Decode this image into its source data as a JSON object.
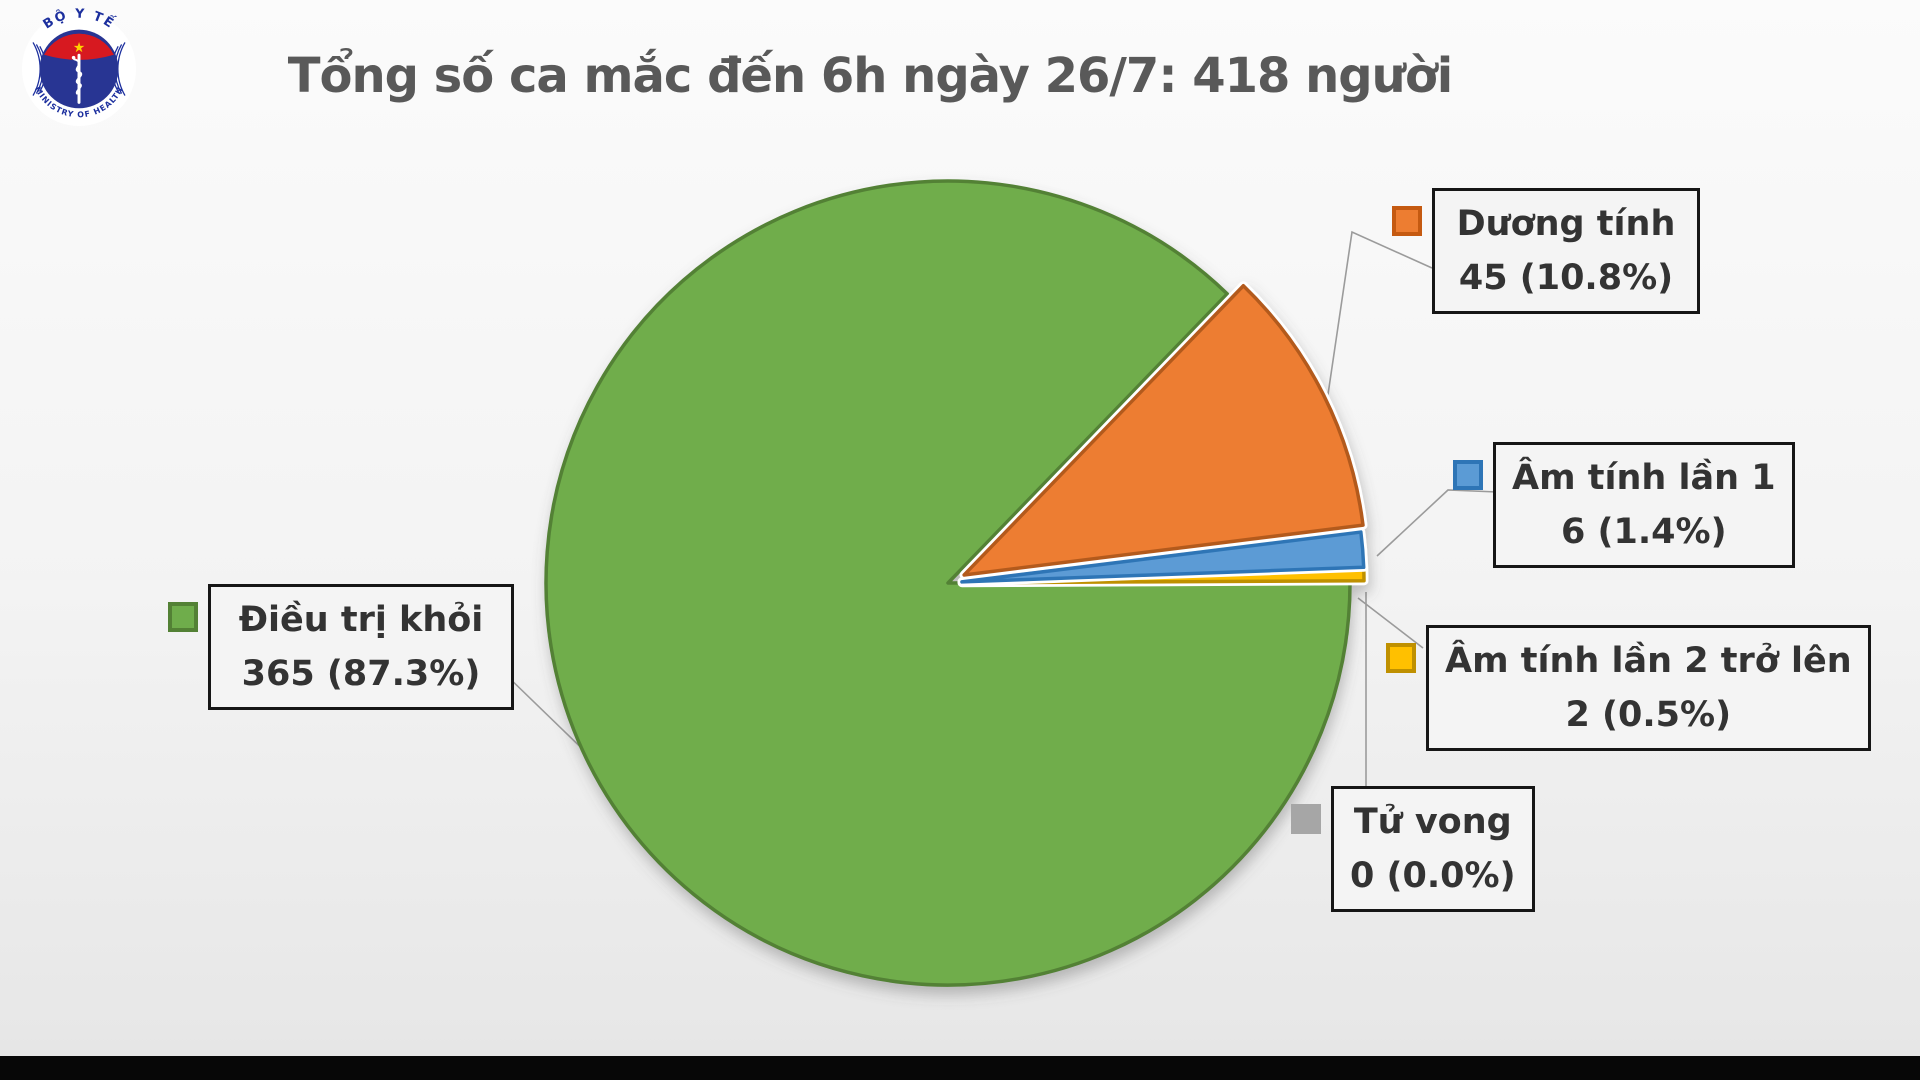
{
  "title": "Tổng số ca mắc đến 6h ngày 26/7: 418 người",
  "logo": {
    "top_text": "BỘ Y TẾ",
    "bottom_text": "MINISTRY OF HEALTH",
    "star": "★"
  },
  "chart_data": {
    "type": "pie",
    "title": "Tổng số ca mắc đến 6h ngày 26/7: 418 người",
    "total": 418,
    "unit": "người",
    "date_label": "6h ngày 26/7",
    "direction": "clockwise",
    "start_angle_deg": 46,
    "legend_position": "callout-labels",
    "slices": [
      {
        "label": "Dương tính",
        "value": 45,
        "percent": 10.8,
        "display": "45 (10.8%)",
        "fill": "#ED7D31",
        "stroke": "#B35A1F",
        "exploded": true
      },
      {
        "label": "Âm tính lần 1",
        "value": 6,
        "percent": 1.4,
        "display": "6 (1.4%)",
        "fill": "#5B9BD5",
        "stroke": "#2E75B6",
        "exploded": true
      },
      {
        "label": "Âm tính lần 2 trở lên",
        "value": 2,
        "percent": 0.5,
        "display": "2 (0.5%)",
        "fill": "#FFC000",
        "stroke": "#BF9000",
        "exploded": true
      },
      {
        "label": "Tử vong",
        "value": 0,
        "percent": 0.0,
        "display": "0 (0.0%)",
        "fill": "#A6A6A6",
        "stroke": "#A6A6A6",
        "exploded": false
      },
      {
        "label": "Điều trị khỏi",
        "value": 365,
        "percent": 87.3,
        "display": "365 (87.3%)",
        "fill": "#6FAD4B",
        "stroke": "#538135",
        "exploded": false
      }
    ]
  },
  "colors": {
    "title_text": "#595959",
    "label_text": "#333333",
    "box_border": "#161616",
    "leader_line": "#9B9B9B",
    "background_top": "#FBFBFB",
    "background_bottom": "#E2E2E2",
    "bottom_bar": "#070707"
  }
}
